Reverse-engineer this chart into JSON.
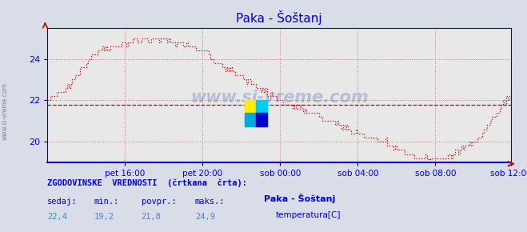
{
  "title": "Paka - Šoštanj",
  "bg_color": "#d8dde8",
  "plot_bg_color": "#e8e8e8",
  "line_color": "#cc0000",
  "avg_line_color": "#cc0000",
  "axis_color": "#0000cc",
  "grid_color": "#cc6666",
  "ylim": [
    19.0,
    25.5
  ],
  "yticks": [
    20,
    22,
    24
  ],
  "avg_value": 21.8,
  "xlabel_times": [
    "pet 16:00",
    "pet 20:00",
    "sob 00:00",
    "sob 04:00",
    "sob 08:00",
    "sob 12:00"
  ],
  "bottom_label1": "ZGODOVINSKE  VREDNOSTI  (črtkana  črta):",
  "bottom_label2_headers": [
    "sedaj:",
    "min.:",
    "povpr.:",
    "maks.:"
  ],
  "bottom_label2_values": [
    "22,4",
    "19,2",
    "21,8",
    "24,9"
  ],
  "legend_station": "Paka - Šoštanj",
  "legend_label": "temperatura[C]",
  "watermark": "www.si-vreme.com",
  "num_points": 288
}
